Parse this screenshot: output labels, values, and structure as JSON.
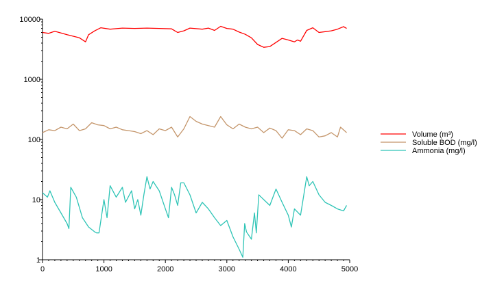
{
  "chart_data": {
    "type": "line",
    "title": "",
    "xlabel": "",
    "ylabel": "",
    "xlim": [
      0,
      5000
    ],
    "ylim": [
      1,
      10000
    ],
    "yscale": "log",
    "grid": false,
    "legend_position": "right",
    "x_ticks": [
      0,
      1000,
      2000,
      3000,
      4000,
      5000
    ],
    "x_tick_labels": [
      "0",
      "1000",
      "2000",
      "3000",
      "4000",
      "5000"
    ],
    "y_ticks": [
      1,
      10,
      100,
      1000,
      10000
    ],
    "y_tick_labels": [
      "1",
      "10",
      "100",
      "1000",
      "10000"
    ],
    "series": [
      {
        "name": "Volume (m³)",
        "color": "#ff0000",
        "x": [
          0,
          100,
          200,
          300,
          400,
          500,
          600,
          700,
          750,
          850,
          950,
          1100,
          1300,
          1500,
          1700,
          1900,
          2100,
          2200,
          2300,
          2400,
          2600,
          2700,
          2800,
          2900,
          3000,
          3100,
          3200,
          3300,
          3400,
          3500,
          3600,
          3700,
          3800,
          3900,
          4000,
          4100,
          4150,
          4200,
          4300,
          4400,
          4500,
          4600,
          4700,
          4800,
          4900,
          4950
        ],
        "y": [
          6000,
          5800,
          6300,
          5900,
          5500,
          5200,
          4900,
          4200,
          5500,
          6400,
          7200,
          6800,
          7100,
          7000,
          7100,
          7000,
          6900,
          6000,
          6400,
          7100,
          6800,
          7100,
          6500,
          7600,
          7000,
          6800,
          6100,
          5600,
          4900,
          3800,
          3400,
          3500,
          4100,
          4800,
          4500,
          4200,
          4500,
          4300,
          6500,
          7200,
          6000,
          6200,
          6400,
          6800,
          7500,
          7000
        ]
      },
      {
        "name": "Soluble BOD (mg/l)",
        "color": "#c4956a",
        "x": [
          0,
          100,
          200,
          300,
          400,
          500,
          600,
          700,
          800,
          900,
          1000,
          1100,
          1200,
          1300,
          1400,
          1500,
          1600,
          1700,
          1800,
          1900,
          2000,
          2100,
          2200,
          2300,
          2400,
          2500,
          2600,
          2700,
          2800,
          2900,
          3000,
          3100,
          3200,
          3300,
          3400,
          3500,
          3600,
          3700,
          3800,
          3900,
          4000,
          4100,
          4200,
          4300,
          4400,
          4500,
          4600,
          4700,
          4800,
          4850,
          4950
        ],
        "y": [
          130,
          145,
          140,
          160,
          150,
          180,
          140,
          150,
          190,
          175,
          170,
          150,
          160,
          145,
          140,
          135,
          125,
          140,
          120,
          150,
          140,
          160,
          110,
          150,
          240,
          200,
          180,
          170,
          160,
          240,
          175,
          150,
          180,
          160,
          150,
          160,
          130,
          155,
          140,
          105,
          145,
          140,
          120,
          150,
          140,
          110,
          115,
          130,
          110,
          160,
          130
        ]
      },
      {
        "name": "Ammonia (mg/l)",
        "color": "#2ec4b6",
        "x": [
          0,
          80,
          120,
          200,
          300,
          400,
          430,
          460,
          550,
          650,
          750,
          850,
          880,
          920,
          1000,
          1050,
          1100,
          1200,
          1300,
          1350,
          1450,
          1500,
          1550,
          1600,
          1650,
          1700,
          1750,
          1800,
          1900,
          2000,
          2050,
          2100,
          2150,
          2200,
          2250,
          2300,
          2400,
          2500,
          2600,
          2700,
          2800,
          2900,
          3000,
          3100,
          3200,
          3260,
          3290,
          3320,
          3400,
          3450,
          3480,
          3520,
          3600,
          3700,
          3800,
          3900,
          4000,
          4050,
          4100,
          4200,
          4300,
          4340,
          4400,
          4500,
          4600,
          4700,
          4800,
          4900,
          4950
        ],
        "y": [
          13,
          11,
          14,
          9,
          6,
          4,
          3.3,
          16,
          11,
          5,
          3.5,
          2.9,
          2.8,
          2.8,
          10,
          5,
          17,
          11,
          16,
          9,
          14,
          7,
          10,
          5.5,
          12,
          24,
          15,
          20,
          14,
          7,
          5,
          16,
          12,
          8,
          19,
          19,
          12,
          6,
          9,
          7,
          5,
          3.7,
          4.5,
          2.4,
          1.5,
          1.1,
          4,
          2.9,
          2.2,
          6,
          2.8,
          12,
          10,
          8,
          15,
          9,
          5.5,
          3.5,
          7,
          5.5,
          24,
          17,
          20,
          12,
          9,
          8,
          7,
          6.5,
          8
        ]
      }
    ]
  }
}
